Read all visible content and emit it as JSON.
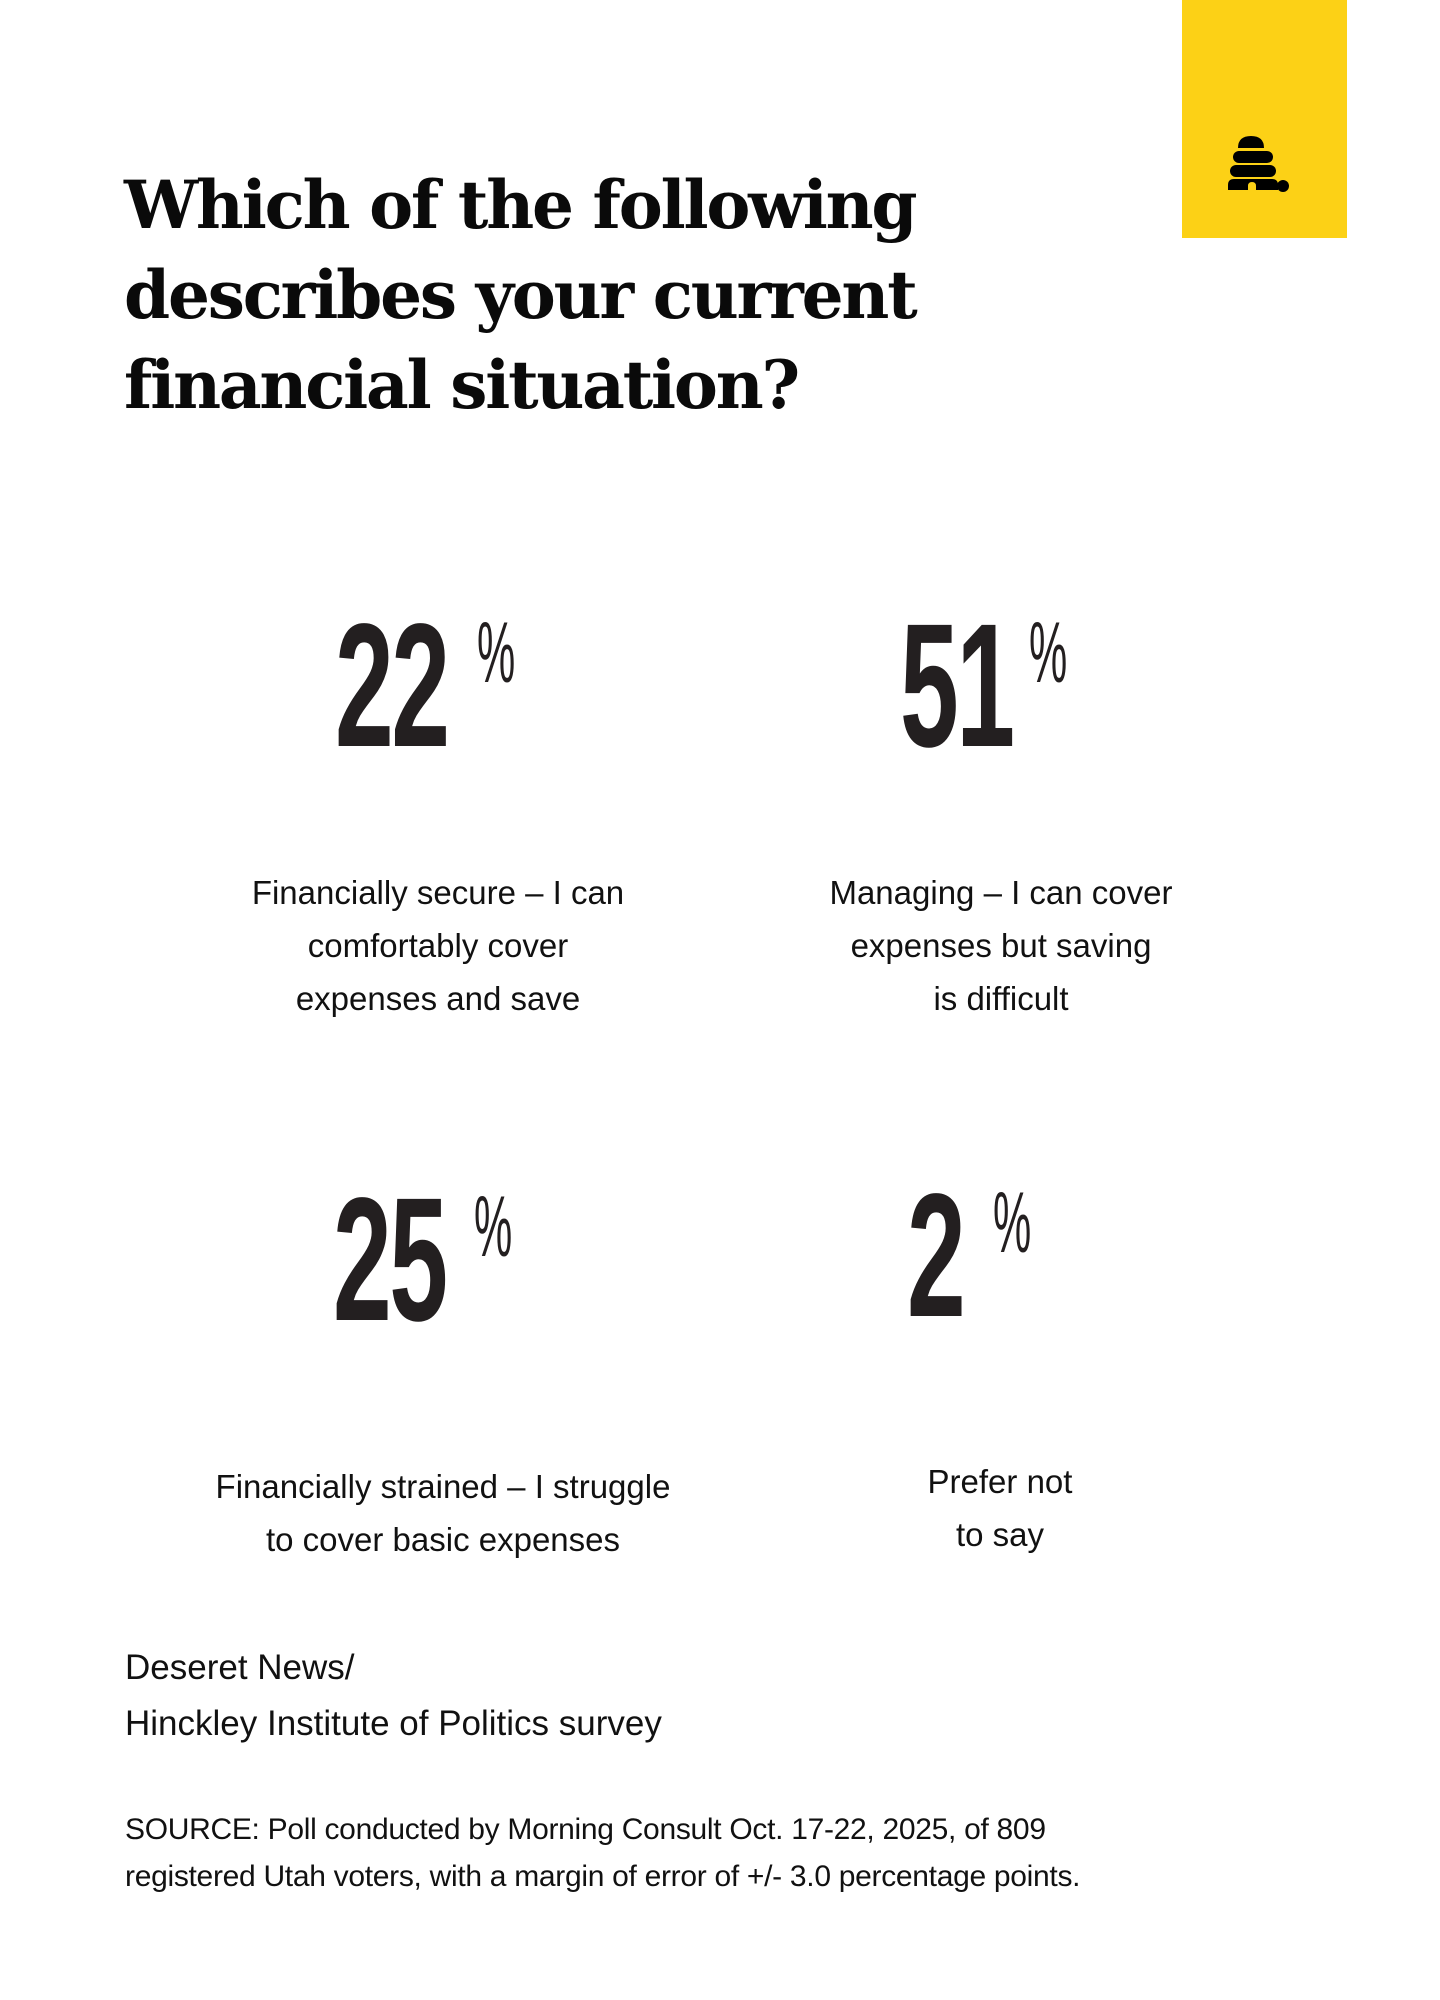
{
  "header": {
    "title_lines": [
      "Which of the following",
      "describes your current",
      "financial situation?"
    ],
    "logo_icon": "beehive-logo-icon"
  },
  "colors": {
    "accent": "#FCD116",
    "ring_stroke": "#231F20",
    "text": "#111111"
  },
  "items": [
    {
      "value": "22",
      "percent_sign": "%",
      "label_lines": [
        "Financially secure – I can",
        "comfortably cover",
        "expenses and save"
      ]
    },
    {
      "value": "51",
      "percent_sign": "%",
      "label_lines": [
        "Managing – I can cover",
        "expenses but saving",
        "is difficult"
      ]
    },
    {
      "value": "25",
      "percent_sign": "%",
      "label_lines": [
        "Financially strained – I struggle",
        "to cover basic expenses"
      ]
    },
    {
      "value": "2",
      "percent_sign": "%",
      "label_lines": [
        "Prefer not",
        "to say"
      ]
    }
  ],
  "attribution": {
    "lines": [
      "Deseret News/",
      "Hinckley Institute of Politics survey"
    ]
  },
  "source": {
    "lines": [
      "SOURCE: Poll conducted by Morning Consult Oct. 17-22, 2025, of 809",
      "registered Utah voters, with a margin of error of +/- 3.0 percentage points."
    ]
  },
  "chart_data": {
    "type": "pie",
    "title": "Which of the following describes your current financial situation?",
    "categories": [
      "Financially secure – I can comfortably cover expenses and save",
      "Managing – I can cover expenses but saving is difficult",
      "Financially strained – I struggle to cover basic expenses",
      "Prefer not to say"
    ],
    "values": [
      22,
      51,
      25,
      2
    ],
    "unit": "%",
    "style": "four separate radial progress rings (donut arcs starting at 12 o'clock, clockwise)",
    "source": "SOURCE: Poll conducted by Morning Consult Oct. 17-22, 2025, of 809 registered Utah voters, with a margin of error of +/- 3.0 percentage points.",
    "attribution": "Deseret News/ Hinckley Institute of Politics survey"
  }
}
